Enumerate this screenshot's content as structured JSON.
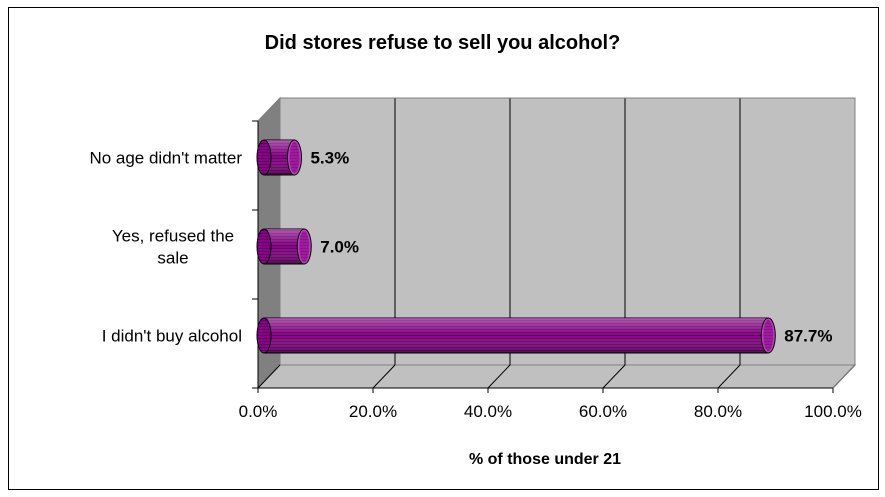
{
  "chart_data": {
    "type": "bar",
    "orientation": "horizontal",
    "title": "Did stores refuse to sell you alcohol?",
    "xlabel": "% of those under 21",
    "ylabel": "",
    "categories": [
      [
        "No age didn't matter"
      ],
      [
        "Yes, refused the",
        "sale"
      ],
      [
        "I didn't buy alcohol"
      ]
    ],
    "values": [
      5.3,
      7.0,
      87.7
    ],
    "data_labels": [
      "5.3%",
      "7.0%",
      "87.7%"
    ],
    "xlim": [
      0,
      100
    ],
    "x_ticks": [
      "0.0%",
      "20.0%",
      "40.0%",
      "60.0%",
      "80.0%",
      "100.0%"
    ],
    "grid": true,
    "legend": "none",
    "colors": {
      "bar": "#8b008b",
      "bar_highlight": "#c040c0",
      "bar_stripe": "#5a005a",
      "plot_back": "#c0c0c0",
      "side_wall": "#808080",
      "floor": "#c0c0c0",
      "grid": "#000000"
    }
  }
}
